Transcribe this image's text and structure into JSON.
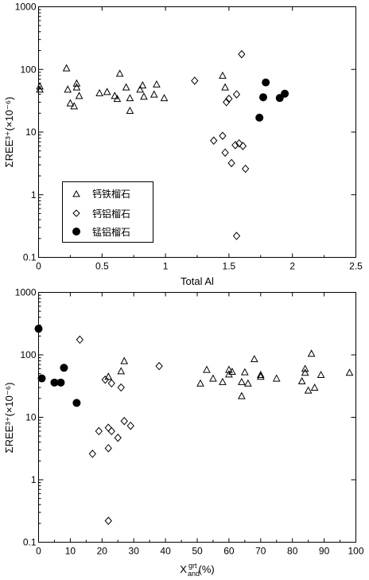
{
  "chart_data": [
    {
      "type": "scatter",
      "xscale": "linear",
      "yscale": "log",
      "xlim": [
        0,
        2.5
      ],
      "ylim": [
        0.1,
        1000
      ],
      "xticks": [
        "0",
        "0.5",
        "1",
        "1.5",
        "2",
        "2.5"
      ],
      "yticks": [
        "0.1",
        "1",
        "10",
        "100",
        "1000"
      ],
      "xlabel": "Total  Al",
      "ylabel": "ΣREE³⁺(×10⁻⁶)",
      "legend_position": "lower-left",
      "series": [
        {
          "name": "钙铁榴石",
          "marker": "triangle",
          "points": [
            [
              0.01,
              54
            ],
            [
              0.01,
              48
            ],
            [
              0.22,
              105
            ],
            [
              0.23,
              48
            ],
            [
              0.25,
              29
            ],
            [
              0.28,
              26
            ],
            [
              0.3,
              60
            ],
            [
              0.3,
              52
            ],
            [
              0.32,
              38
            ],
            [
              0.48,
              42
            ],
            [
              0.54,
              44
            ],
            [
              0.6,
              38
            ],
            [
              0.62,
              34
            ],
            [
              0.64,
              86
            ],
            [
              0.69,
              52
            ],
            [
              0.72,
              35
            ],
            [
              0.72,
              22
            ],
            [
              0.8,
              48
            ],
            [
              0.82,
              56
            ],
            [
              0.83,
              37
            ],
            [
              0.91,
              40
            ],
            [
              0.93,
              58
            ],
            [
              0.99,
              35
            ],
            [
              1.45,
              80
            ],
            [
              1.47,
              52
            ]
          ]
        },
        {
          "name": "钙铝榴石",
          "marker": "diamond",
          "points": [
            [
              1.23,
              66
            ],
            [
              1.38,
              7.3
            ],
            [
              1.45,
              8.7
            ],
            [
              1.48,
              30
            ],
            [
              1.5,
              34
            ],
            [
              1.55,
              6.2
            ],
            [
              1.56,
              40
            ],
            [
              1.58,
              6.6
            ],
            [
              1.47,
              4.7
            ],
            [
              1.52,
              3.2
            ],
            [
              1.6,
              175
            ],
            [
              1.61,
              6
            ],
            [
              1.63,
              2.6
            ],
            [
              1.56,
              0.22
            ]
          ]
        },
        {
          "name": "锰铝榴石",
          "marker": "circle",
          "points": [
            [
              1.74,
              17
            ],
            [
              1.77,
              36
            ],
            [
              1.79,
              62
            ],
            [
              1.9,
              35
            ],
            [
              1.94,
              41
            ]
          ]
        }
      ]
    },
    {
      "type": "scatter",
      "xscale": "linear",
      "yscale": "log",
      "xlim": [
        0,
        100
      ],
      "ylim": [
        0.1,
        1000
      ],
      "xticks": [
        "0",
        "10",
        "20",
        "30",
        "40",
        "50",
        "60",
        "70",
        "80",
        "90",
        "100"
      ],
      "yticks": [
        "0.1",
        "1",
        "10",
        "100",
        "1000"
      ],
      "xlabel_main": "X",
      "xlabel_sup": "grt",
      "xlabel_sub": "and",
      "xlabel_unit": "(%)",
      "ylabel": "ΣREE³⁺(×10⁻⁶)",
      "series": [
        {
          "name": "钙铁榴石",
          "marker": "triangle",
          "points": [
            [
              22,
              45
            ],
            [
              26,
              55
            ],
            [
              27,
              80
            ],
            [
              51,
              35
            ],
            [
              53,
              58
            ],
            [
              55,
              42
            ],
            [
              58,
              37
            ],
            [
              60,
              49
            ],
            [
              60,
              58
            ],
            [
              61,
              54
            ],
            [
              64,
              37
            ],
            [
              64,
              22
            ],
            [
              65,
              53
            ],
            [
              66,
              35
            ],
            [
              68,
              86
            ],
            [
              70,
              45
            ],
            [
              70,
              48
            ],
            [
              75,
              42
            ],
            [
              83,
              38
            ],
            [
              84,
              60
            ],
            [
              84,
              52
            ],
            [
              85,
              27
            ],
            [
              86,
              105
            ],
            [
              87,
              30
            ],
            [
              89,
              48
            ],
            [
              98,
              52
            ]
          ]
        },
        {
          "name": "钙铝榴石",
          "marker": "diamond",
          "points": [
            [
              13,
              175
            ],
            [
              38,
              66
            ],
            [
              21,
              40
            ],
            [
              23,
              35
            ],
            [
              26,
              30
            ],
            [
              17,
              2.6
            ],
            [
              19,
              6
            ],
            [
              22,
              6.8
            ],
            [
              23,
              6
            ],
            [
              27,
              8.7
            ],
            [
              29,
              7.3
            ],
            [
              25,
              4.7
            ],
            [
              22,
              3.2
            ],
            [
              22,
              0.22
            ]
          ]
        },
        {
          "name": "锰铝榴石",
          "marker": "circle",
          "points": [
            [
              0,
              262
            ],
            [
              1,
              42
            ],
            [
              5,
              36
            ],
            [
              7,
              36
            ],
            [
              8,
              62
            ],
            [
              12,
              17
            ]
          ]
        }
      ]
    }
  ]
}
